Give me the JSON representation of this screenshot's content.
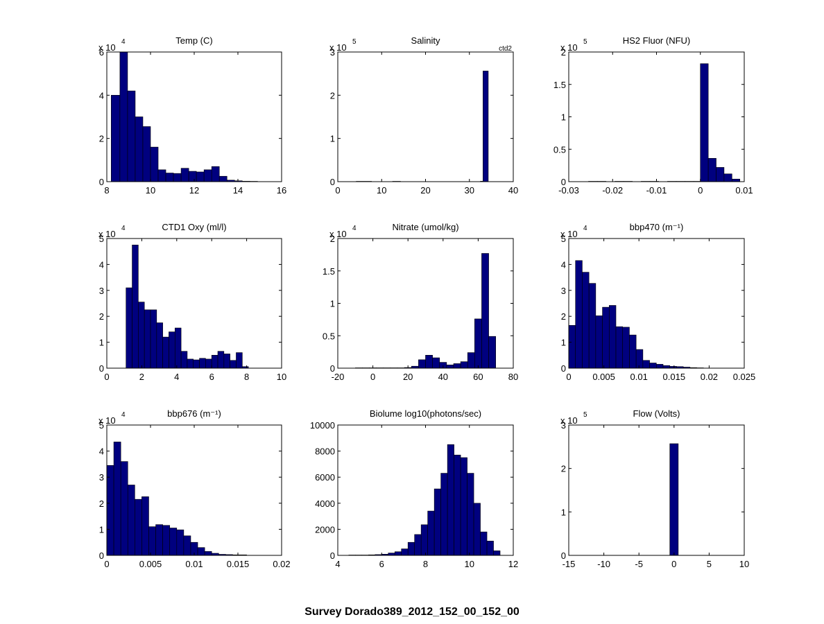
{
  "figure": {
    "suptitle": "Survey Dorado389_2012_152_00_152_00",
    "bar_color": "#00007f"
  },
  "chart_data": [
    {
      "type": "bar",
      "title": "Temp (C)",
      "xlim": [
        8,
        16
      ],
      "xticks": [
        "8",
        "10",
        "12",
        "14",
        "16"
      ],
      "ylim": [
        0,
        6
      ],
      "yticks": [
        "0",
        "2",
        "4",
        "6"
      ],
      "exponent": "4",
      "bins": [
        [
          8.2,
          8.6,
          4.0
        ],
        [
          8.6,
          8.95,
          6.0
        ],
        [
          8.95,
          9.3,
          4.2
        ],
        [
          9.3,
          9.65,
          3.0
        ],
        [
          9.65,
          10.0,
          2.55
        ],
        [
          10.0,
          10.35,
          1.6
        ],
        [
          10.35,
          10.7,
          0.55
        ],
        [
          10.7,
          11.05,
          0.4
        ],
        [
          11.05,
          11.4,
          0.38
        ],
        [
          11.4,
          11.75,
          0.62
        ],
        [
          11.75,
          12.1,
          0.48
        ],
        [
          12.1,
          12.45,
          0.45
        ],
        [
          12.45,
          12.8,
          0.55
        ],
        [
          12.8,
          13.15,
          0.7
        ],
        [
          13.15,
          13.5,
          0.25
        ],
        [
          13.5,
          13.85,
          0.07
        ],
        [
          13.85,
          14.2,
          0.04
        ],
        [
          14.2,
          14.55,
          0.02
        ],
        [
          14.55,
          14.9,
          0.01
        ]
      ]
    },
    {
      "type": "bar",
      "title": "Salinity",
      "annotation": "ctd2",
      "xlim": [
        0,
        40
      ],
      "xticks": [
        "0",
        "10",
        "20",
        "30",
        "40"
      ],
      "ylim": [
        0,
        3
      ],
      "yticks": [
        "0",
        "1",
        "2",
        "3"
      ],
      "exponent": "5",
      "bins": [
        [
          4.2,
          7.7,
          0.004
        ],
        [
          12.5,
          14.3,
          0.004
        ],
        [
          32.5,
          33.1,
          0.01
        ],
        [
          33.1,
          34.3,
          2.56
        ]
      ]
    },
    {
      "type": "bar",
      "title": "HS2 Fluor (NFU)",
      "xlim": [
        -0.03,
        0.01
      ],
      "xticks": [
        "-0.03",
        "-0.02",
        "-0.01",
        "0",
        "0.01"
      ],
      "ylim": [
        0,
        2
      ],
      "yticks": [
        "0",
        "0.5",
        "1",
        "1.5",
        "2"
      ],
      "exponent": "5",
      "bins": [
        [
          -0.0255,
          -0.0235,
          0.005
        ],
        [
          -0.0235,
          -0.0215,
          0.003
        ],
        [
          -0.0195,
          -0.0175,
          0.003
        ],
        [
          -0.0175,
          -0.0155,
          0.003
        ],
        [
          -0.0135,
          -0.0115,
          0.002
        ],
        [
          -0.0115,
          -0.0095,
          0.002
        ],
        [
          -0.0075,
          -0.0055,
          0.002
        ],
        [
          -0.0055,
          -0.0035,
          0.002
        ],
        [
          -0.0035,
          -0.0015,
          0.002
        ],
        [
          -0.0015,
          0.0,
          0.004
        ],
        [
          0.0,
          0.0018,
          1.82
        ],
        [
          0.0018,
          0.0036,
          0.36
        ],
        [
          0.0036,
          0.0054,
          0.22
        ],
        [
          0.0054,
          0.0072,
          0.12
        ],
        [
          0.0072,
          0.009,
          0.04
        ]
      ]
    },
    {
      "type": "bar",
      "title": "CTD1 Oxy (ml/l)",
      "xlim": [
        0,
        10
      ],
      "xticks": [
        "0",
        "2",
        "4",
        "6",
        "8",
        "10"
      ],
      "ylim": [
        0,
        5
      ],
      "yticks": [
        "0",
        "1",
        "2",
        "3",
        "4",
        "5"
      ],
      "exponent": "4",
      "bins": [
        [
          1.1,
          1.45,
          3.1
        ],
        [
          1.45,
          1.8,
          4.75
        ],
        [
          1.8,
          2.15,
          2.55
        ],
        [
          2.15,
          2.5,
          2.25
        ],
        [
          2.5,
          2.85,
          2.25
        ],
        [
          2.85,
          3.2,
          1.75
        ],
        [
          3.2,
          3.55,
          1.2
        ],
        [
          3.55,
          3.9,
          1.4
        ],
        [
          3.9,
          4.25,
          1.55
        ],
        [
          4.25,
          4.6,
          0.65
        ],
        [
          4.6,
          4.95,
          0.35
        ],
        [
          4.95,
          5.3,
          0.32
        ],
        [
          5.3,
          5.65,
          0.38
        ],
        [
          5.65,
          6.0,
          0.35
        ],
        [
          6.0,
          6.35,
          0.5
        ],
        [
          6.35,
          6.7,
          0.65
        ],
        [
          6.7,
          7.05,
          0.55
        ],
        [
          7.05,
          7.4,
          0.3
        ],
        [
          7.4,
          7.75,
          0.6
        ],
        [
          7.75,
          8.1,
          0.06
        ]
      ]
    },
    {
      "type": "bar",
      "title": "Nitrate (umol/kg)",
      "xlim": [
        -20,
        80
      ],
      "xticks": [
        "-20",
        "0",
        "20",
        "40",
        "60",
        "80"
      ],
      "ylim": [
        0,
        2
      ],
      "yticks": [
        "0",
        "0.5",
        "1",
        "1.5",
        "2"
      ],
      "exponent": "4",
      "bins": [
        [
          -10,
          -6,
          0.005
        ],
        [
          -6,
          -2,
          0.005
        ],
        [
          -2,
          2,
          0.005
        ],
        [
          2,
          6,
          0.005
        ],
        [
          6,
          10,
          0.005
        ],
        [
          10,
          14,
          0.005
        ],
        [
          14,
          18,
          0.005
        ],
        [
          18,
          22,
          0.01
        ],
        [
          22,
          26,
          0.03
        ],
        [
          26,
          30,
          0.13
        ],
        [
          30,
          34,
          0.2
        ],
        [
          34,
          38,
          0.16
        ],
        [
          38,
          42,
          0.09
        ],
        [
          42,
          46,
          0.05
        ],
        [
          46,
          50,
          0.07
        ],
        [
          50,
          54,
          0.1
        ],
        [
          54,
          58,
          0.24
        ],
        [
          58,
          62,
          0.76
        ],
        [
          62,
          66,
          1.77
        ],
        [
          66,
          70,
          0.49
        ]
      ]
    },
    {
      "type": "bar",
      "title": "bbp470 (m⁻¹)",
      "xlim": [
        0,
        0.025
      ],
      "xticks": [
        "0",
        "0.005",
        "0.01",
        "0.015",
        "0.02",
        "0.025"
      ],
      "ylim": [
        0,
        5
      ],
      "yticks": [
        "0",
        "1",
        "2",
        "3",
        "4",
        "5"
      ],
      "exponent": "4",
      "bins": [
        [
          0.0,
          0.00096,
          1.65
        ],
        [
          0.00096,
          0.00192,
          4.15
        ],
        [
          0.00192,
          0.00288,
          3.7
        ],
        [
          0.00288,
          0.00384,
          3.27
        ],
        [
          0.00384,
          0.0048,
          2.02
        ],
        [
          0.0048,
          0.00576,
          2.35
        ],
        [
          0.00576,
          0.00672,
          2.42
        ],
        [
          0.00672,
          0.00768,
          1.6
        ],
        [
          0.00768,
          0.00864,
          1.58
        ],
        [
          0.00864,
          0.0096,
          1.28
        ],
        [
          0.0096,
          0.01056,
          0.72
        ],
        [
          0.01056,
          0.01152,
          0.3
        ],
        [
          0.01152,
          0.01248,
          0.2
        ],
        [
          0.01248,
          0.01344,
          0.15
        ],
        [
          0.01344,
          0.0144,
          0.1
        ],
        [
          0.0144,
          0.01536,
          0.07
        ],
        [
          0.01536,
          0.01632,
          0.06
        ],
        [
          0.01632,
          0.01728,
          0.04
        ],
        [
          0.01728,
          0.01824,
          0.02
        ],
        [
          0.01824,
          0.0192,
          0.01
        ]
      ]
    },
    {
      "type": "bar",
      "title": "bbp676 (m⁻¹)",
      "xlim": [
        0,
        0.02
      ],
      "xticks": [
        "0",
        "0.005",
        "0.01",
        "0.015",
        "0.02"
      ],
      "ylim": [
        0,
        5
      ],
      "yticks": [
        "0",
        "1",
        "2",
        "3",
        "4",
        "5"
      ],
      "exponent": "4",
      "bins": [
        [
          0.0,
          0.0008,
          3.45
        ],
        [
          0.0008,
          0.0016,
          4.35
        ],
        [
          0.0016,
          0.0024,
          3.6
        ],
        [
          0.0024,
          0.0032,
          2.7
        ],
        [
          0.0032,
          0.004,
          2.15
        ],
        [
          0.004,
          0.0048,
          2.25
        ],
        [
          0.0048,
          0.0056,
          1.1
        ],
        [
          0.0056,
          0.0064,
          1.18
        ],
        [
          0.0064,
          0.0072,
          1.15
        ],
        [
          0.0072,
          0.008,
          1.05
        ],
        [
          0.008,
          0.0088,
          0.98
        ],
        [
          0.0088,
          0.0096,
          0.75
        ],
        [
          0.0096,
          0.0104,
          0.5
        ],
        [
          0.0104,
          0.0112,
          0.3
        ],
        [
          0.0112,
          0.012,
          0.15
        ],
        [
          0.012,
          0.0128,
          0.08
        ],
        [
          0.0128,
          0.0136,
          0.04
        ],
        [
          0.0136,
          0.0144,
          0.03
        ],
        [
          0.0144,
          0.0152,
          0.02
        ],
        [
          0.0152,
          0.016,
          0.02
        ]
      ]
    },
    {
      "type": "bar",
      "title": "Biolume log10(photons/sec)",
      "xlim": [
        4,
        12
      ],
      "xticks": [
        "4",
        "6",
        "8",
        "10",
        "12"
      ],
      "ylim": [
        0,
        10000
      ],
      "yticks": [
        "0",
        "2000",
        "4000",
        "6000",
        "8000",
        "10000"
      ],
      "exponent": "",
      "bins": [
        [
          4.5,
          4.8,
          5
        ],
        [
          4.8,
          5.1,
          15
        ],
        [
          5.1,
          5.4,
          25
        ],
        [
          5.4,
          5.7,
          40
        ],
        [
          5.7,
          6.0,
          60
        ],
        [
          6.0,
          6.3,
          90
        ],
        [
          6.3,
          6.6,
          180
        ],
        [
          6.6,
          6.9,
          280
        ],
        [
          6.9,
          7.2,
          500
        ],
        [
          7.2,
          7.5,
          1000
        ],
        [
          7.5,
          7.8,
          1600
        ],
        [
          7.8,
          8.1,
          2350
        ],
        [
          8.1,
          8.4,
          3400
        ],
        [
          8.4,
          8.7,
          5100
        ],
        [
          8.7,
          9.0,
          6300
        ],
        [
          9.0,
          9.3,
          8500
        ],
        [
          9.3,
          9.6,
          7700
        ],
        [
          9.6,
          9.9,
          7500
        ],
        [
          9.9,
          10.2,
          6300
        ],
        [
          10.2,
          10.5,
          4000
        ],
        [
          10.5,
          10.8,
          1800
        ],
        [
          10.8,
          11.1,
          1100
        ],
        [
          11.1,
          11.4,
          350
        ]
      ]
    },
    {
      "type": "bar",
      "title": "Flow (Volts)",
      "xlim": [
        -15,
        10
      ],
      "xticks": [
        "-15",
        "-10",
        "-5",
        "0",
        "5",
        "10"
      ],
      "ylim": [
        0,
        3
      ],
      "yticks": [
        "0",
        "1",
        "2",
        "3"
      ],
      "exponent": "5",
      "bins": [
        [
          -0.6,
          0.6,
          2.57
        ]
      ]
    }
  ]
}
